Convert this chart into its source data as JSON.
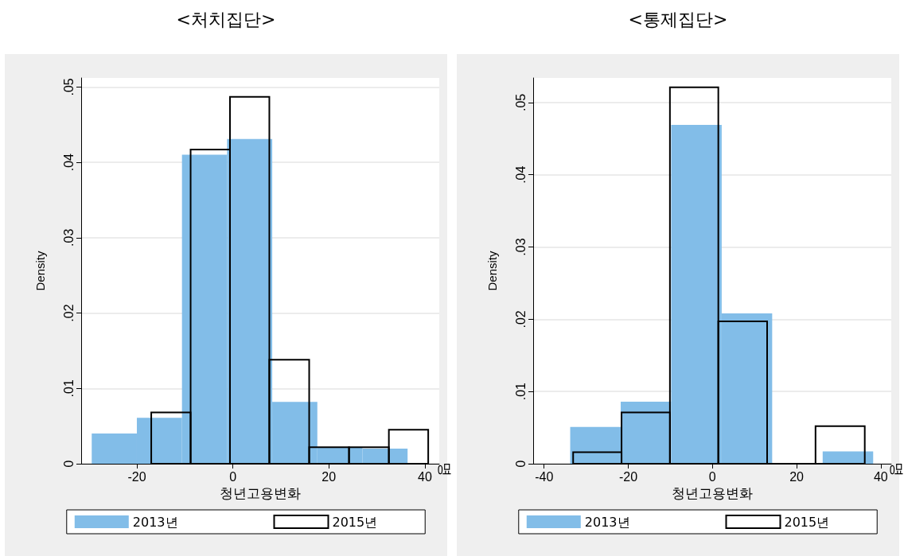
{
  "chart_data": [
    {
      "type": "histogram",
      "title": "<처치집단>",
      "xlabel": "청년고용변화",
      "ylabel": "Density",
      "annotations": [
        "명"
      ],
      "legend": "bottom",
      "grid": "y",
      "xlim": [
        -31.6,
        43.0
      ],
      "xticks": [
        -20,
        0,
        20,
        40
      ],
      "ylim": [
        0,
        0.0512
      ],
      "yticks": [
        0,
        {
          "value": 0.01,
          "label": ".01"
        },
        {
          "value": 0.02,
          "label": ".02"
        },
        {
          "value": 0.03,
          "label": ".03"
        },
        {
          "value": 0.04,
          "label": ".04"
        },
        {
          "value": 0.05,
          "label": ".05"
        }
      ],
      "bins": [
        -29.4,
        -20,
        -10.6,
        -1.2,
        8.2,
        17.6,
        27,
        36.4
      ],
      "series": [
        {
          "name": "2013년",
          "color": "#82bde8",
          "values": [
            0.004,
            0.0061,
            0.041,
            0.0431,
            0.0082,
            0.0022,
            0.002
          ]
        },
        {
          "name": "2015년",
          "color": "#000000",
          "bins": [
            -17.0,
            -8.8,
            -0.6,
            7.6,
            15.9,
            24.2,
            32.5,
            40.7
          ],
          "values": [
            0.0068,
            0.0417,
            0.0487,
            0.0138,
            0.0022,
            0.0022,
            0.0045
          ]
        }
      ]
    },
    {
      "type": "histogram",
      "title": "<통제집단>",
      "xlabel": "청년고용변화",
      "ylabel": "Density",
      "annotations": [
        "명"
      ],
      "legend": "bottom",
      "grid": "y",
      "xlim": [
        -42.6,
        42.5
      ],
      "xticks": [
        -40,
        -20,
        0,
        20,
        40
      ],
      "ylim": [
        0,
        0.0534
      ],
      "yticks": [
        0,
        {
          "value": 0.01,
          "label": ".01"
        },
        {
          "value": 0.02,
          "label": ".02"
        },
        {
          "value": 0.03,
          "label": ".03"
        },
        {
          "value": 0.04,
          "label": ".04"
        },
        {
          "value": 0.05,
          "label": ".05"
        }
      ],
      "bins": [
        -33.8,
        -21.8,
        -9.8,
        2.2,
        14.2,
        26.2,
        38.2
      ],
      "series": [
        {
          "name": "2013년",
          "color": "#82bde8",
          "values": [
            0.0051,
            0.0086,
            0.0469,
            0.0208,
            0,
            0.0017
          ]
        },
        {
          "name": "2015년",
          "color": "#000000",
          "bins": [
            -33.1,
            -21.6,
            -10.1,
            1.4,
            13.0,
            24.5,
            36.2
          ],
          "values": [
            0.0016,
            0.0071,
            0.0521,
            0.0197,
            0,
            0.0052
          ]
        }
      ]
    }
  ]
}
